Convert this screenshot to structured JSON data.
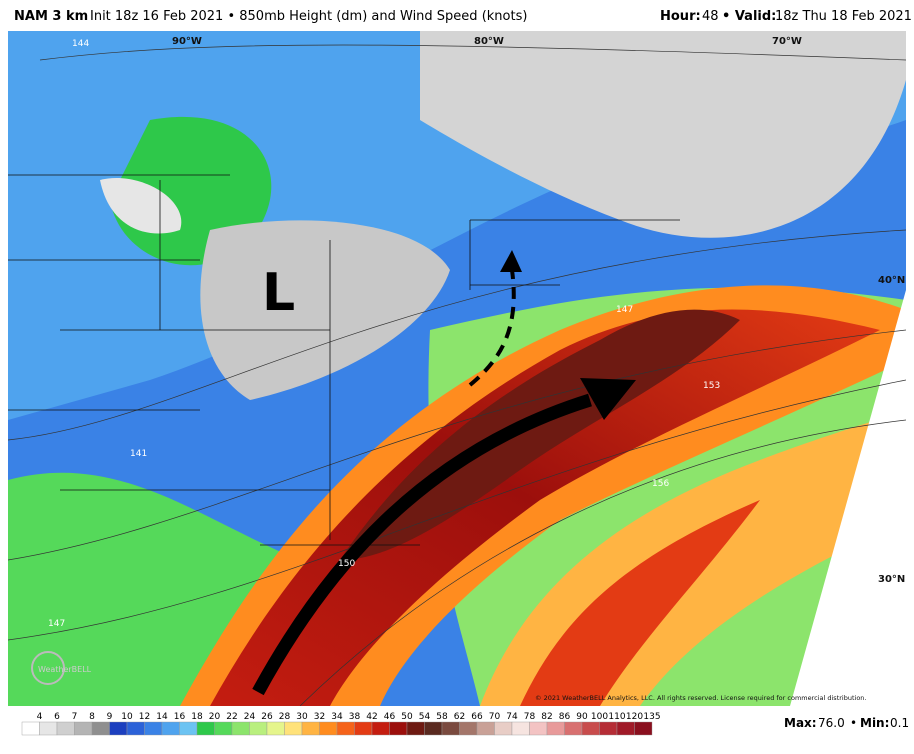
{
  "header": {
    "model": "NAM 3 km",
    "init": "Init 18z 16 Feb 2021 • 850mb Height (dm) and Wind Speed (knots)",
    "hour_label": "Hour:",
    "hour": "48",
    "valid_label": "• Valid:",
    "valid": "18z Thu 18 Feb 2021"
  },
  "map": {
    "longitudes": [
      "90°W",
      "80°W",
      "70°W"
    ],
    "latitudes": [
      "40°N",
      "30°N"
    ],
    "low_label": "L",
    "contours": [
      "144",
      "147",
      "150",
      "153",
      "156",
      "141",
      "147"
    ],
    "copyright": "© 2021 WeatherBELL Analytics, LLC. All rights reserved. License required for commercial distribution.",
    "logo": "WeatherBELL"
  },
  "colorbar": {
    "labels": [
      4,
      6,
      7,
      8,
      9,
      10,
      12,
      14,
      16,
      18,
      20,
      22,
      24,
      26,
      28,
      30,
      32,
      34,
      38,
      42,
      46,
      50,
      54,
      58,
      62,
      66,
      70,
      74,
      78,
      82,
      86,
      90,
      100,
      110,
      120,
      135
    ],
    "colors": [
      "#ffffff",
      "#e6e6e6",
      "#cfcfcf",
      "#b4b4b4",
      "#8f8f8f",
      "#1c3fbf",
      "#2c62d8",
      "#3a82e6",
      "#4fa3ee",
      "#6cc3f2",
      "#2ec84a",
      "#55d95a",
      "#8ce46c",
      "#b9ef7e",
      "#e5f58c",
      "#ffe27a",
      "#ffb443",
      "#ff8c1f",
      "#f5631a",
      "#e33b14",
      "#c41d10",
      "#9c0f0c",
      "#6e1a12",
      "#5a2a20",
      "#7a4a3f",
      "#a4766a",
      "#c9a197",
      "#e8cdc6",
      "#f6e4e0",
      "#f3c3c3",
      "#e89a9a",
      "#d87070",
      "#c84c4c",
      "#b52d36",
      "#a01a28",
      "#8a0f1e"
    ]
  },
  "footer": {
    "max_label": "Max:",
    "max": "76.0",
    "sep": "•",
    "min_label": "Min:",
    "min": "0.1"
  }
}
